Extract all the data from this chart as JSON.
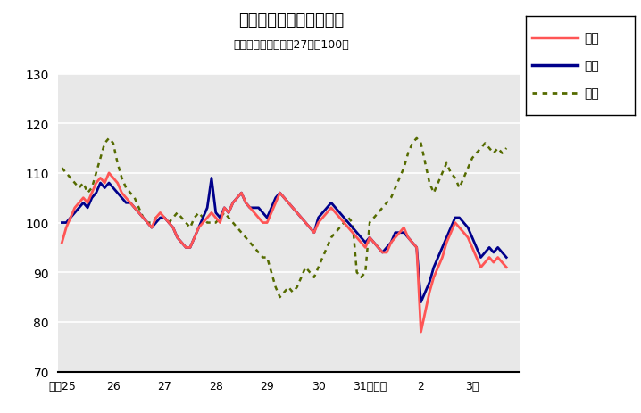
{
  "title": "鳥取県鉱工業指数の推移",
  "subtitle": "（季節調整済、平成27年＝100）",
  "legend_labels": [
    "生産",
    "出荷",
    "在庫"
  ],
  "line_colors": [
    "#FF5555",
    "#00008B",
    "#556B00"
  ],
  "ylim": [
    70,
    130
  ],
  "yticks": [
    70,
    80,
    90,
    100,
    110,
    120,
    130
  ],
  "xtick_labels": [
    "平成25",
    "26",
    "27",
    "28",
    "29",
    "30",
    "31令和元",
    "2",
    "3年"
  ],
  "xtick_positions": [
    0,
    12,
    24,
    36,
    48,
    60,
    72,
    84,
    96
  ],
  "background_color": "#E8E8E8",
  "production": [
    96,
    99,
    101,
    103,
    104,
    105,
    104,
    106,
    108,
    109,
    108,
    110,
    109,
    108,
    106,
    105,
    104,
    103,
    102,
    101,
    100,
    99,
    101,
    102,
    101,
    100,
    99,
    97,
    96,
    95,
    95,
    97,
    99,
    100,
    101,
    102,
    101,
    100,
    103,
    102,
    104,
    105,
    106,
    104,
    103,
    102,
    101,
    100,
    100,
    102,
    104,
    106,
    105,
    104,
    103,
    102,
    101,
    100,
    99,
    98,
    100,
    101,
    102,
    103,
    102,
    101,
    100,
    99,
    98,
    97,
    96,
    95,
    97,
    96,
    95,
    94,
    94,
    96,
    97,
    98,
    99,
    97,
    96,
    95,
    78,
    82,
    86,
    89,
    91,
    93,
    96,
    98,
    100,
    99,
    98,
    97,
    95,
    93,
    91,
    92,
    93,
    92,
    93,
    92,
    91
  ],
  "shipment": [
    100,
    100,
    101,
    102,
    103,
    104,
    103,
    105,
    106,
    108,
    107,
    108,
    107,
    106,
    105,
    104,
    104,
    103,
    102,
    101,
    100,
    99,
    100,
    101,
    101,
    100,
    99,
    97,
    96,
    95,
    95,
    97,
    99,
    101,
    103,
    109,
    102,
    101,
    103,
    102,
    104,
    105,
    106,
    104,
    103,
    103,
    103,
    102,
    101,
    103,
    105,
    106,
    105,
    104,
    103,
    102,
    101,
    100,
    99,
    98,
    101,
    102,
    103,
    104,
    103,
    102,
    101,
    100,
    99,
    98,
    97,
    96,
    97,
    96,
    95,
    94,
    95,
    96,
    98,
    98,
    98,
    97,
    96,
    95,
    84,
    86,
    88,
    91,
    93,
    95,
    97,
    99,
    101,
    101,
    100,
    99,
    97,
    95,
    93,
    94,
    95,
    94,
    95,
    94,
    93
  ],
  "inventory": [
    111,
    110,
    109,
    108,
    107,
    108,
    106,
    107,
    110,
    113,
    116,
    117,
    116,
    112,
    109,
    107,
    106,
    105,
    103,
    101,
    100,
    100,
    101,
    101,
    101,
    100,
    101,
    102,
    101,
    100,
    99,
    101,
    102,
    101,
    100,
    100,
    100,
    101,
    102,
    101,
    100,
    99,
    98,
    97,
    96,
    95,
    94,
    93,
    93,
    90,
    87,
    85,
    86,
    87,
    86,
    87,
    89,
    91,
    90,
    89,
    91,
    93,
    95,
    97,
    98,
    99,
    100,
    101,
    100,
    90,
    89,
    90,
    100,
    101,
    102,
    103,
    104,
    105,
    107,
    109,
    111,
    114,
    116,
    117,
    116,
    112,
    108,
    106,
    108,
    110,
    112,
    110,
    109,
    107,
    109,
    111,
    113,
    114,
    115,
    116,
    115,
    114,
    115,
    114,
    115
  ]
}
